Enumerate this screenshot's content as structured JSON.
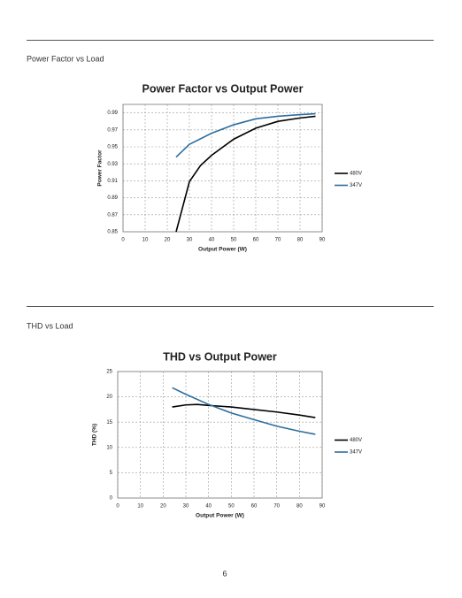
{
  "sections": [
    {
      "heading": "Power Factor vs Load"
    },
    {
      "heading": "THD vs Load"
    }
  ],
  "page_number": "6",
  "chart_data": [
    {
      "type": "line",
      "title": "Power Factor vs Output Power",
      "x_label": "Output Power (W)",
      "y_label": "Power Factor",
      "xlim": [
        0,
        90
      ],
      "xticks": [
        0,
        10,
        20,
        30,
        40,
        50,
        60,
        70,
        80,
        90
      ],
      "ylim": [
        0.85,
        1.0
      ],
      "yticks": [
        0.85,
        0.87,
        0.89,
        0.91,
        0.93,
        0.95,
        0.97,
        0.99
      ],
      "grid": true,
      "legend": "right",
      "series": [
        {
          "name": "480V",
          "color": "#000000",
          "x": [
            24,
            30,
            35,
            40,
            50,
            60,
            70,
            80,
            87
          ],
          "values": [
            0.85,
            0.909,
            0.928,
            0.94,
            0.959,
            0.972,
            0.98,
            0.984,
            0.986
          ]
        },
        {
          "name": "347V",
          "color": "#2e6e9e",
          "x": [
            24,
            30,
            40,
            50,
            60,
            70,
            80,
            87
          ],
          "values": [
            0.938,
            0.953,
            0.966,
            0.976,
            0.983,
            0.986,
            0.988,
            0.989
          ]
        }
      ]
    },
    {
      "type": "line",
      "title": "THD vs Output Power",
      "x_label": "Output Power (W)",
      "y_label": "THD (%)",
      "xlim": [
        0,
        90
      ],
      "xticks": [
        0,
        10,
        20,
        30,
        40,
        50,
        60,
        70,
        80,
        90
      ],
      "ylim": [
        0,
        25
      ],
      "yticks": [
        0,
        5,
        10,
        15,
        20,
        25
      ],
      "grid": true,
      "legend": "right",
      "series": [
        {
          "name": "480V",
          "color": "#000000",
          "x": [
            24,
            30,
            35,
            40,
            50,
            60,
            70,
            80,
            87
          ],
          "values": [
            18.0,
            18.4,
            18.5,
            18.3,
            18.0,
            17.5,
            17.0,
            16.4,
            15.9
          ]
        },
        {
          "name": "347V",
          "color": "#2e6e9e",
          "x": [
            24,
            30,
            40,
            50,
            60,
            70,
            80,
            87
          ],
          "values": [
            21.8,
            20.5,
            18.5,
            16.8,
            15.5,
            14.2,
            13.2,
            12.6
          ]
        }
      ]
    }
  ]
}
